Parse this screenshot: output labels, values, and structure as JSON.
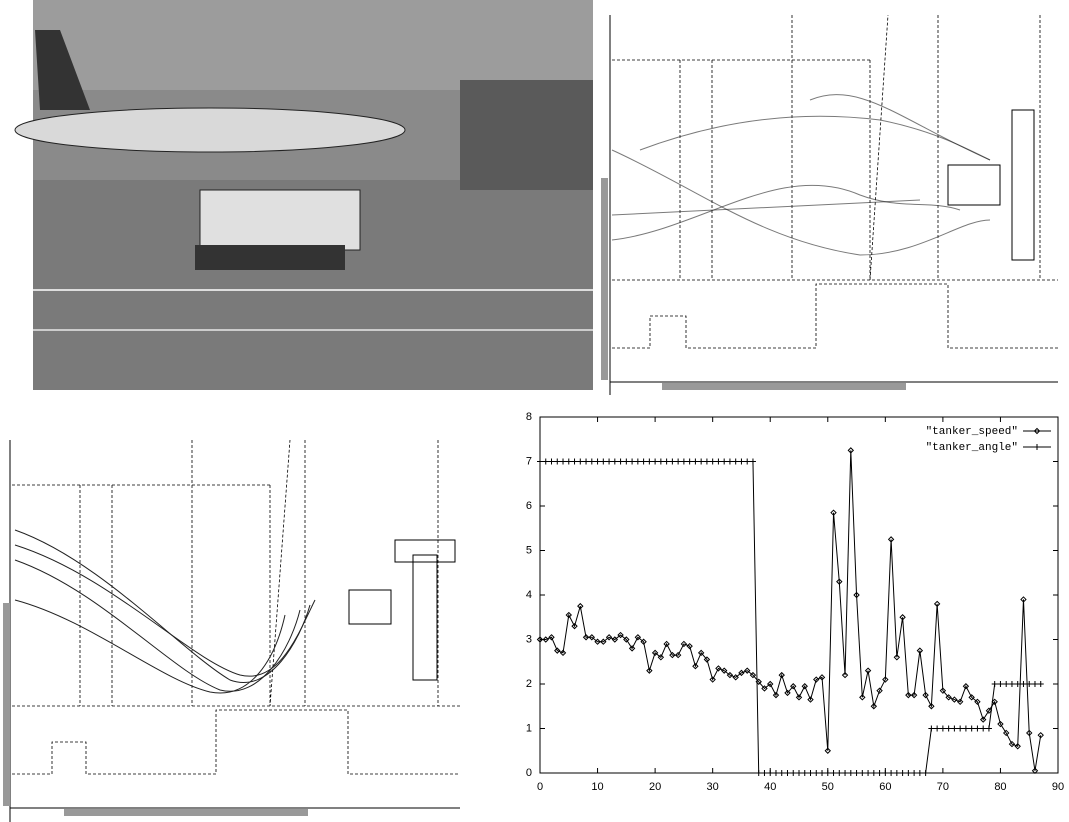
{
  "chart_data": {
    "type": "line",
    "x": [
      0,
      1,
      2,
      3,
      4,
      5,
      6,
      7,
      8,
      9,
      10,
      11,
      12,
      13,
      14,
      15,
      16,
      17,
      18,
      19,
      20,
      21,
      22,
      23,
      24,
      25,
      26,
      27,
      28,
      29,
      30,
      31,
      32,
      33,
      34,
      35,
      36,
      37,
      38,
      39,
      40,
      41,
      42,
      43,
      44,
      45,
      46,
      47,
      48,
      49,
      50,
      51,
      52,
      53,
      54,
      55,
      56,
      57,
      58,
      59,
      60,
      61,
      62,
      63,
      64,
      65,
      66,
      67,
      68,
      69,
      70,
      71,
      72,
      73,
      74,
      75,
      76,
      77,
      78,
      79,
      80,
      81,
      82,
      83,
      84,
      85,
      86,
      87
    ],
    "series": [
      {
        "name": "\"tanker_speed\"",
        "color": "#000000",
        "marker": "diamond",
        "values": [
          3.0,
          3.0,
          3.05,
          2.75,
          2.7,
          3.55,
          3.3,
          3.75,
          3.05,
          3.05,
          2.95,
          2.95,
          3.05,
          3.0,
          3.1,
          3.0,
          2.8,
          3.05,
          2.95,
          2.3,
          2.7,
          2.6,
          2.9,
          2.65,
          2.65,
          2.9,
          2.85,
          2.4,
          2.7,
          2.55,
          2.1,
          2.35,
          2.3,
          2.2,
          2.15,
          2.25,
          2.3,
          2.2,
          2.05,
          1.9,
          2.0,
          1.75,
          2.2,
          1.8,
          1.95,
          1.7,
          1.95,
          1.65,
          2.1,
          2.15,
          0.5,
          5.85,
          4.3,
          2.2,
          7.25,
          4.0,
          1.7,
          2.3,
          1.5,
          1.85,
          2.1,
          5.25,
          2.6,
          3.5,
          1.75,
          1.75,
          2.75,
          1.75,
          1.5,
          3.8,
          1.85,
          1.7,
          1.65,
          1.6,
          1.95,
          1.7,
          1.6,
          1.2,
          1.4,
          1.6,
          1.1,
          0.9,
          0.65,
          0.6,
          3.9,
          0.9,
          0.05,
          0.85
        ]
      },
      {
        "name": "\"tanker_angle\"",
        "color": "#000000",
        "marker": "plus",
        "values": [
          7,
          7,
          7,
          7,
          7,
          7,
          7,
          7,
          7,
          7,
          7,
          7,
          7,
          7,
          7,
          7,
          7,
          7,
          7,
          7,
          7,
          7,
          7,
          7,
          7,
          7,
          7,
          7,
          7,
          7,
          7,
          7,
          7,
          7,
          7,
          7,
          7,
          7,
          0,
          0,
          0,
          0,
          0,
          0,
          0,
          0,
          0,
          0,
          0,
          0,
          0,
          0,
          0,
          0,
          0,
          0,
          0,
          0,
          0,
          0,
          0,
          0,
          0,
          0,
          0,
          0,
          0,
          0,
          1,
          1,
          1,
          1,
          1,
          1,
          1,
          1,
          1,
          1,
          1,
          2,
          2,
          2,
          2,
          2,
          2,
          2,
          2,
          2
        ]
      }
    ],
    "xlim": [
      0,
      90
    ],
    "xticks": [
      0,
      10,
      20,
      30,
      40,
      50,
      60,
      70,
      80,
      90
    ],
    "ylim": [
      0,
      8
    ],
    "yticks": [
      0,
      1,
      2,
      3,
      4,
      5,
      6,
      7,
      8
    ],
    "legend": "top-right",
    "grid": false
  }
}
